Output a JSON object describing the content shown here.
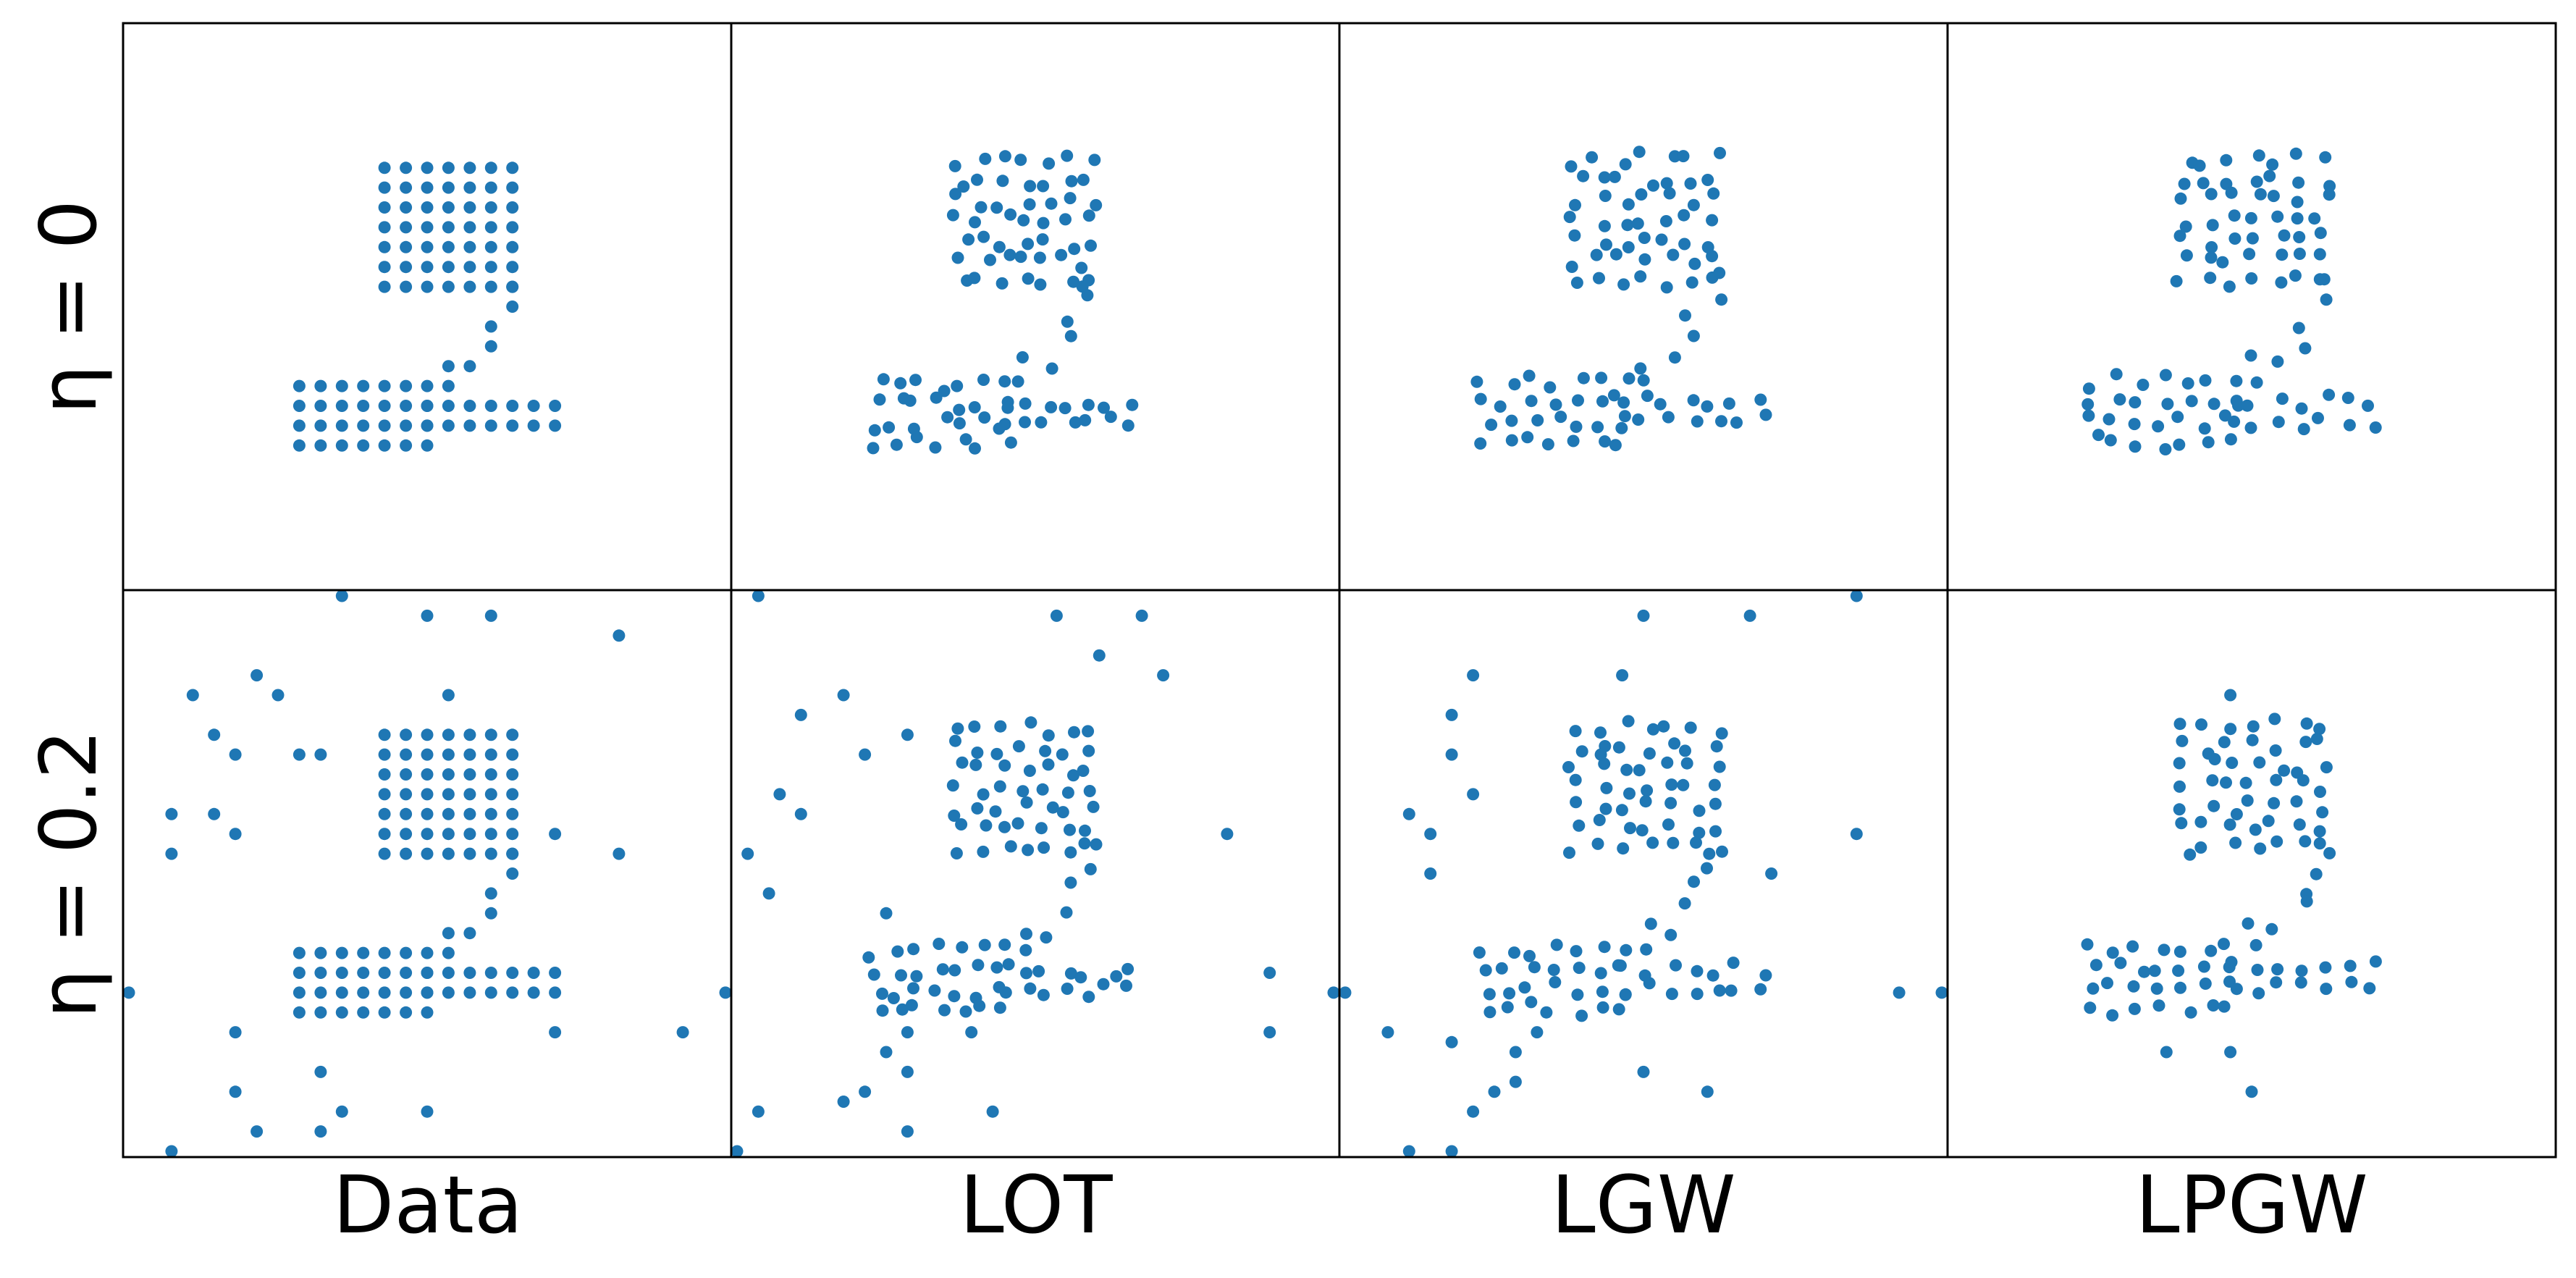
{
  "chart_data": {
    "type": "scatter",
    "layout": "grid",
    "columns": [
      "Data",
      "LOT",
      "LGW",
      "LPGW"
    ],
    "rows": [
      "η = 0",
      "η = 0.2"
    ],
    "marker_color": "#1f77b4",
    "grid": false,
    "axes_ticks": false,
    "xlim": [
      0,
      28
    ],
    "ylim": [
      0,
      28
    ],
    "digit": {
      "bowl": {
        "x": [
          12,
          18
        ],
        "y": [
          7,
          13
        ]
      },
      "neck": [
        [
          18,
          13
        ],
        [
          18,
          14
        ],
        [
          17,
          15
        ],
        [
          17,
          16
        ],
        [
          16,
          17
        ],
        [
          15,
          17
        ],
        [
          15,
          18
        ]
      ],
      "base": {
        "x": [
          8,
          14
        ],
        "y": [
          18,
          21
        ]
      },
      "tail": {
        "x": [
          14,
          20
        ],
        "y": [
          19,
          20
        ]
      }
    },
    "outliers": {
      "panel_data_eta_0_2": [
        [
          10,
          0
        ],
        [
          14,
          1
        ],
        [
          17,
          1
        ],
        [
          23,
          2
        ],
        [
          6,
          4
        ],
        [
          3,
          5
        ],
        [
          7,
          5
        ],
        [
          15,
          5
        ],
        [
          4,
          7
        ],
        [
          5,
          8
        ],
        [
          8,
          8
        ],
        [
          9,
          8
        ],
        [
          2,
          11
        ],
        [
          4,
          11
        ],
        [
          5,
          12
        ],
        [
          2,
          13
        ],
        [
          20,
          12
        ],
        [
          23,
          13
        ],
        [
          0,
          20
        ],
        [
          28,
          20
        ],
        [
          5,
          22
        ],
        [
          20,
          22
        ],
        [
          26,
          22
        ],
        [
          9,
          24
        ],
        [
          5,
          25
        ],
        [
          14,
          26
        ],
        [
          10,
          26
        ],
        [
          6,
          27
        ],
        [
          9,
          27
        ],
        [
          2,
          28
        ],
        [
          4,
          29
        ],
        [
          4,
          29.6
        ]
      ],
      "panel_lot_eta_0_2": [
        [
          1,
          0
        ],
        [
          15,
          1
        ],
        [
          19,
          1
        ],
        [
          17,
          3
        ],
        [
          20,
          4
        ],
        [
          5,
          5
        ],
        [
          3,
          6
        ],
        [
          8,
          7
        ],
        [
          6,
          8
        ],
        [
          2,
          10
        ],
        [
          3,
          11
        ],
        [
          0.5,
          13
        ],
        [
          23,
          12
        ],
        [
          1.5,
          15
        ],
        [
          7,
          16
        ],
        [
          25,
          19
        ],
        [
          28,
          20
        ],
        [
          8,
          22
        ],
        [
          25,
          22
        ],
        [
          7,
          23
        ],
        [
          6,
          25
        ],
        [
          8,
          24
        ],
        [
          11,
          22
        ],
        [
          5,
          25.5
        ],
        [
          12,
          26
        ],
        [
          8,
          27
        ],
        [
          1,
          26
        ],
        [
          0,
          28
        ],
        [
          2,
          29
        ],
        [
          12,
          29
        ]
      ],
      "panel_lgw_eta_0_2": [
        [
          24,
          0
        ],
        [
          14,
          1
        ],
        [
          19,
          1
        ],
        [
          6,
          4
        ],
        [
          13,
          4
        ],
        [
          5,
          6
        ],
        [
          5,
          8
        ],
        [
          12,
          8
        ],
        [
          6,
          10
        ],
        [
          3,
          11
        ],
        [
          4,
          12
        ],
        [
          24,
          12
        ],
        [
          4,
          14
        ],
        [
          20,
          14
        ],
        [
          0,
          20
        ],
        [
          26,
          20
        ],
        [
          28,
          20
        ],
        [
          2,
          22
        ],
        [
          5,
          22.5
        ],
        [
          9,
          22
        ],
        [
          8,
          23
        ],
        [
          14,
          24
        ],
        [
          8,
          24.5
        ],
        [
          7,
          25
        ],
        [
          17,
          25
        ],
        [
          6,
          26
        ],
        [
          3,
          28
        ],
        [
          5,
          28
        ],
        [
          0,
          29
        ],
        [
          13,
          29.6
        ]
      ],
      "panel_lpgw_eta_0_2": [
        [
          13,
          5
        ],
        [
          10,
          23
        ],
        [
          13,
          23
        ],
        [
          14,
          25
        ]
      ]
    }
  }
}
